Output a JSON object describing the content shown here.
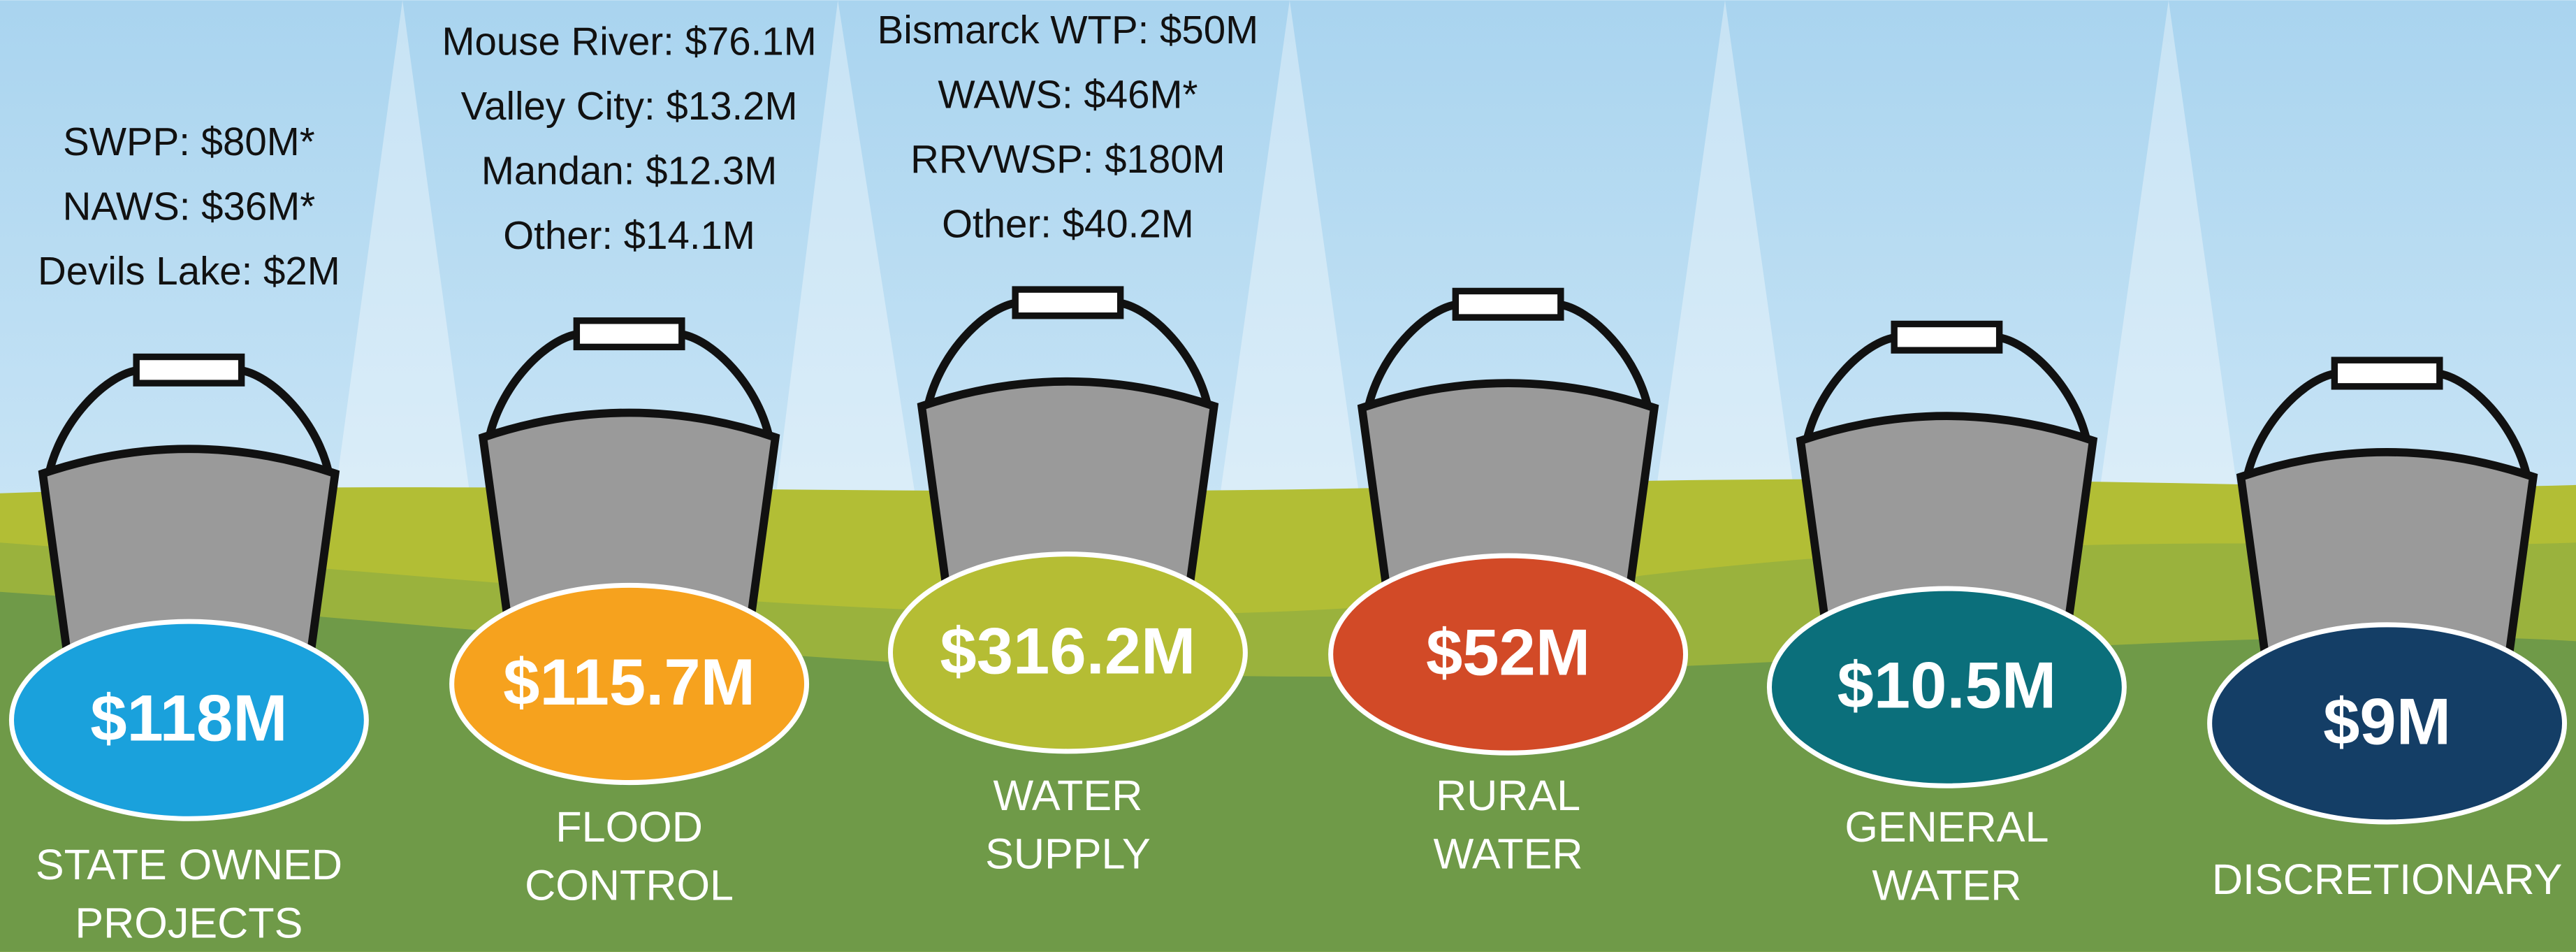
{
  "buckets": [
    {
      "items": [
        "SWPP: $80M*",
        "NAWS: $36M*",
        "Devils Lake: $2M"
      ],
      "total": "$118M",
      "label": [
        "STATE OWNED",
        "PROJECTS"
      ],
      "color": "#1aa1dc"
    },
    {
      "items": [
        "Mouse River: $76.1M",
        "Valley City: $13.2M",
        "Mandan: $12.3M",
        "Other: $14.1M"
      ],
      "total": "$115.7M",
      "label": [
        "FLOOD",
        "CONTROL"
      ],
      "color": "#f6a21e"
    },
    {
      "items": [
        "Bismarck WTP: $50M",
        "WAWS: $46M*",
        "RRVWSP: $180M",
        "Other: $40.2M"
      ],
      "total": "$316.2M",
      "label": [
        "WATER",
        "SUPPLY"
      ],
      "color": "#b5bd34"
    },
    {
      "items": [],
      "total": "$52M",
      "label": [
        "RURAL",
        "WATER"
      ],
      "color": "#d24a27"
    },
    {
      "items": [],
      "total": "$10.5M",
      "label": [
        "GENERAL",
        "WATER"
      ],
      "color": "#0b6f7b"
    },
    {
      "items": [],
      "total": "$9M",
      "label": [
        "DISCRETIONARY"
      ],
      "color": "#143e66"
    }
  ]
}
